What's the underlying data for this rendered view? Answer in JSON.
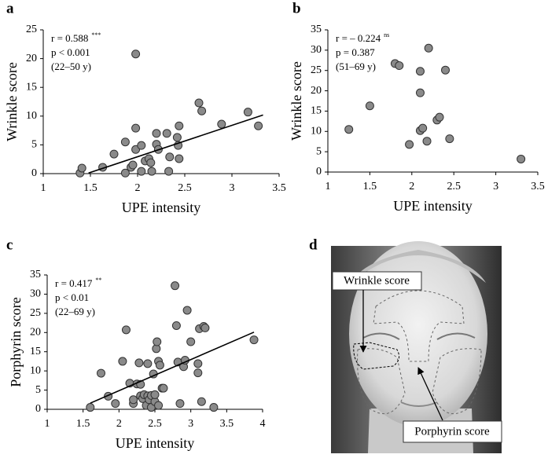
{
  "chart_data": [
    {
      "type": "scatter",
      "panel": "a",
      "xlabel": "UPE intensity",
      "ylabel": "Wrinkle score",
      "annotations": [
        {
          "text": "r = 0.588",
          "superscript": "***"
        },
        {
          "text": "p < 0.001"
        },
        {
          "text": "(22–50 y)"
        }
      ],
      "xlim": [
        1,
        3.5
      ],
      "xticks": [
        1,
        1.5,
        2,
        2.5,
        3,
        3.5
      ],
      "ylim": [
        0,
        25
      ],
      "yticks": [
        0,
        5,
        10,
        15,
        20,
        25
      ],
      "color": "#8a8a8a",
      "x": [
        1.39,
        1.41,
        1.63,
        1.75,
        1.87,
        1.87,
        1.93,
        1.95,
        1.98,
        1.98,
        1.98,
        2.04,
        2.04,
        2.08,
        2.12,
        2.14,
        2.15,
        2.2,
        2.2,
        2.22,
        2.31,
        2.34,
        2.33,
        2.42,
        2.43,
        2.44,
        2.44,
        2.65,
        2.68,
        2.89,
        3.17,
        3.28
      ],
      "values": [
        0.1,
        0.96,
        1.1,
        3.4,
        5.5,
        0.1,
        1.1,
        1.5,
        7.9,
        20.8,
        4.2,
        4.9,
        0.4,
        2.2,
        2.6,
        1.9,
        0.4,
        5.1,
        7.0,
        4.2,
        7.0,
        2.9,
        0.4,
        6.3,
        4.9,
        8.3,
        2.6,
        12.3,
        10.9,
        8.6,
        10.7,
        8.3
      ],
      "fit": {
        "x": [
          1.48,
          3.33
        ],
        "values": [
          0.1,
          10.2
        ]
      }
    },
    {
      "type": "scatter",
      "panel": "b",
      "xlabel": "UPE intensity",
      "ylabel": "Wrinkle score",
      "annotations": [
        {
          "text": "r = – 0.224",
          "superscript": "ns"
        },
        {
          "text": "p = 0.387"
        },
        {
          "text": "(51–69 y)"
        }
      ],
      "xlim": [
        1,
        3.5
      ],
      "xticks": [
        1,
        1.5,
        2,
        2.5,
        3,
        3.5
      ],
      "ylim": [
        0,
        35
      ],
      "yticks": [
        0,
        5,
        10,
        15,
        20,
        25,
        30,
        35
      ],
      "color": "#8a8a8a",
      "x": [
        1.25,
        1.5,
        1.8,
        1.85,
        1.97,
        2.1,
        2.1,
        2.1,
        2.13,
        2.18,
        2.2,
        2.3,
        2.33,
        2.4,
        2.45,
        3.3
      ],
      "values": [
        10.5,
        16.3,
        26.7,
        26.2,
        6.8,
        24.8,
        19.5,
        10.2,
        10.8,
        7.6,
        30.5,
        12.8,
        13.5,
        25.1,
        8.2,
        3.2
      ]
    },
    {
      "type": "scatter",
      "panel": "c",
      "xlabel": "UPE intensity",
      "ylabel": "Porphyrin score",
      "annotations": [
        {
          "text": "r = 0.417",
          "superscript": "**"
        },
        {
          "text": "p < 0.01"
        },
        {
          "text": "(22–69 y)"
        }
      ],
      "xlim": [
        1,
        4
      ],
      "xticks": [
        1,
        1.5,
        2,
        2.5,
        3,
        3.5,
        4
      ],
      "ylim": [
        0,
        35
      ],
      "yticks": [
        0,
        5,
        10,
        15,
        20,
        25,
        30,
        35
      ],
      "color": "#8a8a8a",
      "x": [
        1.6,
        1.75,
        1.85,
        1.95,
        2.05,
        2.1,
        2.15,
        2.2,
        2.2,
        2.25,
        2.28,
        2.3,
        2.3,
        2.33,
        2.35,
        2.38,
        2.4,
        2.4,
        2.42,
        2.45,
        2.45,
        2.48,
        2.5,
        2.5,
        2.52,
        2.53,
        2.55,
        2.55,
        2.57,
        2.6,
        2.62,
        2.78,
        2.8,
        2.82,
        2.85,
        2.9,
        2.92,
        2.95,
        3.0,
        3.1,
        3.1,
        3.12,
        3.15,
        3.18,
        3.2,
        3.32,
        3.88
      ],
      "values": [
        0.5,
        9.4,
        3.4,
        1.5,
        12.5,
        20.7,
        6.8,
        1.5,
        2.5,
        6.6,
        12.1,
        3.5,
        6.5,
        2.8,
        3.8,
        1.0,
        11.9,
        3.5,
        2.5,
        3.6,
        0.5,
        9.2,
        2.0,
        3.8,
        15.8,
        17.6,
        1.0,
        12.5,
        11.5,
        5.5,
        5.5,
        32.2,
        21.8,
        12.3,
        1.5,
        11.1,
        12.8,
        25.8,
        17.6,
        9.5,
        11.9,
        21.0,
        2.0,
        21.6,
        21.2,
        0.5,
        18.1
      ],
      "fit": {
        "x": [
          1.6,
          3.88
        ],
        "values": [
          1.6,
          20.1
        ]
      }
    }
  ],
  "panel_d": {
    "panel": "d",
    "labels": [
      "Wrinkle score",
      "Porphyrin score"
    ]
  }
}
